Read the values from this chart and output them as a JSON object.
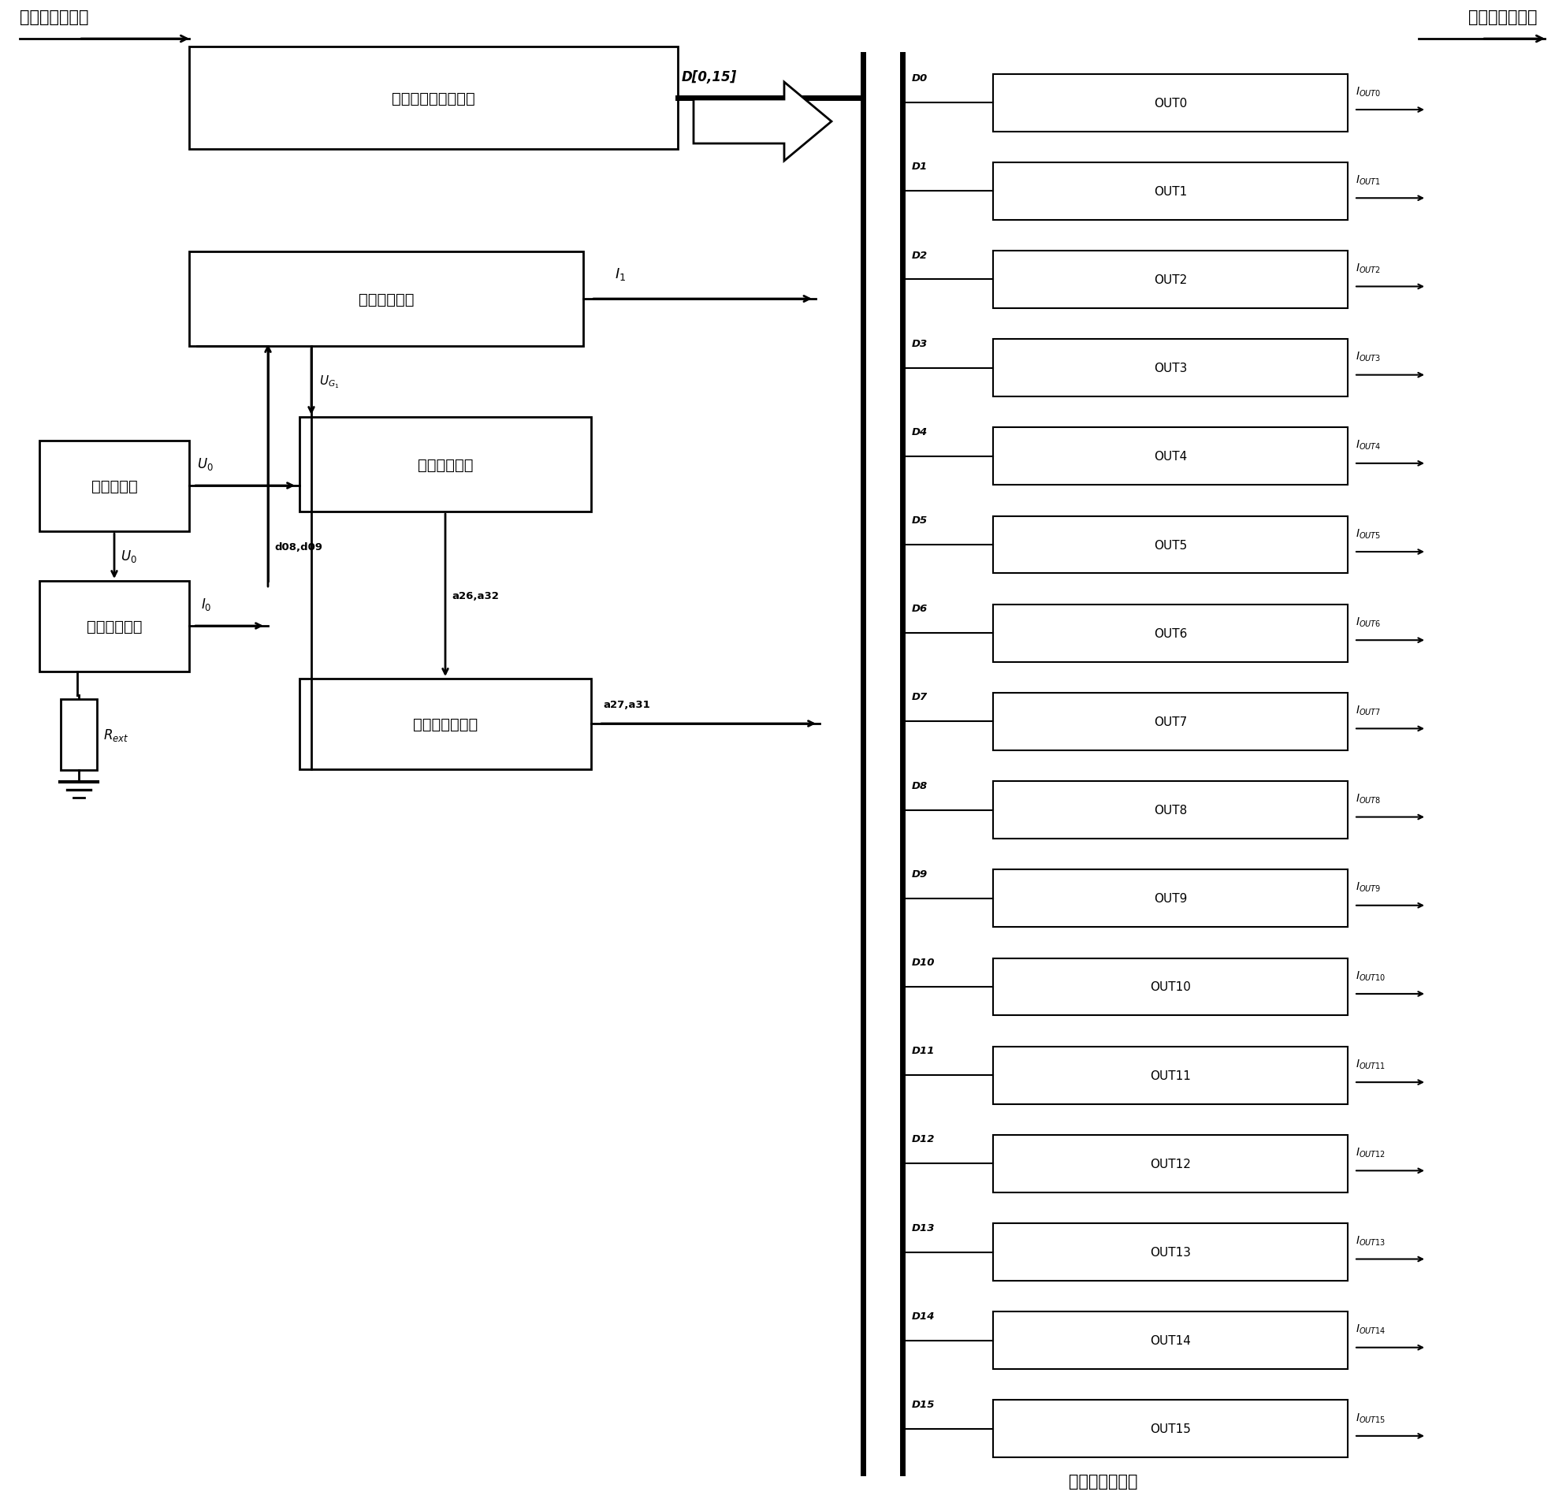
{
  "fig_width": 19.74,
  "fig_height": 19.08,
  "bg_color": "#ffffff",
  "title_top_left": "显示帧数据输入",
  "title_top_right": "显示帧数据输出",
  "title_bottom": "第二级电流镜组",
  "box_labels": {
    "display_proc": "显示帧数据处理电路",
    "first_mirror": "第一级电流镜",
    "volt_sample": "电压采样电路",
    "ref_volt": "基准电压源",
    "const_curr": "恒流调节电路",
    "mirror_ratio": "电流镜像比自调"
  },
  "out_labels": [
    "OUT0",
    "OUT1",
    "OUT2",
    "OUT3",
    "OUT4",
    "OUT5",
    "OUT6",
    "OUT7",
    "OUT8",
    "OUT9",
    "OUT10",
    "OUT11",
    "OUT12",
    "OUT13",
    "OUT14",
    "OUT15"
  ],
  "D_labels": [
    "D0",
    "D1",
    "D2",
    "D3",
    "D4",
    "D5",
    "D6",
    "D7",
    "D8",
    "D9",
    "D10",
    "D11",
    "D12",
    "D13",
    "D14",
    "D15"
  ],
  "n_out": 16,
  "lw_main": 2.0,
  "lw_bus": 5.0,
  "lw_thin": 1.5,
  "font_cn": 14,
  "font_label": 11,
  "font_small": 9.5,
  "font_out": 11
}
